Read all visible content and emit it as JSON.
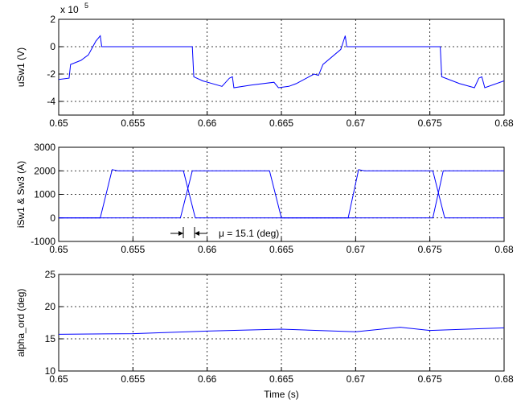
{
  "chart_data": [
    {
      "type": "line",
      "ylabel": "uSw1 (V)",
      "y_multiplier": "x 10",
      "y_exponent": "5",
      "xlim": [
        0.65,
        0.68
      ],
      "xticks": [
        0.65,
        0.655,
        0.66,
        0.665,
        0.67,
        0.675,
        0.68
      ],
      "ylim": [
        -5,
        2
      ],
      "yticks": [
        -4,
        -2,
        0,
        2
      ],
      "grid": true,
      "series": [
        {
          "color": "#0000ff",
          "x": [
            0.65,
            0.6507,
            0.6508,
            0.6515,
            0.652,
            0.6525,
            0.6528,
            0.6529,
            0.659,
            0.6591,
            0.6597,
            0.661,
            0.6615,
            0.6617,
            0.6618,
            0.663,
            0.6645,
            0.6648,
            0.6655,
            0.666,
            0.6672,
            0.6675,
            0.6678,
            0.669,
            0.6693,
            0.6694,
            0.6757,
            0.6758,
            0.677,
            0.678,
            0.6783,
            0.6785,
            0.6787,
            0.68
          ],
          "values": [
            -2.4,
            -2.3,
            -1.3,
            -1.0,
            -0.6,
            0.4,
            0.8,
            0,
            0,
            -2.2,
            -2.5,
            -2.9,
            -2.3,
            -2.2,
            -3.0,
            -2.8,
            -2.6,
            -3.0,
            -2.9,
            -2.7,
            -2.0,
            -2.1,
            -1.3,
            -0.2,
            0.8,
            0,
            0,
            -2.2,
            -2.7,
            -3.0,
            -2.3,
            -2.2,
            -3.0,
            -2.5
          ]
        }
      ]
    },
    {
      "type": "line",
      "ylabel": "iSw1 & Sw3 (A)",
      "annotation": "μ = 15.1 (deg)",
      "xlim": [
        0.65,
        0.68
      ],
      "xticks": [
        0.65,
        0.655,
        0.66,
        0.665,
        0.67,
        0.675,
        0.68
      ],
      "ylim": [
        -1000,
        3000
      ],
      "yticks": [
        -1000,
        0,
        1000,
        2000,
        3000
      ],
      "grid": true,
      "series": [
        {
          "color": "#0000ff",
          "x": [
            0.65,
            0.6528,
            0.6536,
            0.654,
            0.6584,
            0.6592,
            0.6695,
            0.6702,
            0.6706,
            0.6752,
            0.676,
            0.68
          ],
          "values": [
            0,
            0,
            2050,
            2000,
            2000,
            0,
            0,
            2050,
            2000,
            2000,
            0,
            0
          ]
        },
        {
          "color": "#0000ff",
          "x": [
            0.65,
            0.6582,
            0.659,
            0.6642,
            0.665,
            0.6752,
            0.6759,
            0.68
          ],
          "values": [
            0,
            0,
            2000,
            2000,
            0,
            0,
            2000,
            2000
          ]
        }
      ]
    },
    {
      "type": "line",
      "ylabel": "alpha_ord (deg)",
      "xlabel": "Time (s)",
      "xlim": [
        0.65,
        0.68
      ],
      "xticks": [
        0.65,
        0.655,
        0.66,
        0.665,
        0.67,
        0.675,
        0.68
      ],
      "ylim": [
        10,
        25
      ],
      "yticks": [
        10,
        15,
        20,
        25
      ],
      "grid": true,
      "series": [
        {
          "color": "#0000ff",
          "x": [
            0.65,
            0.655,
            0.66,
            0.665,
            0.67,
            0.673,
            0.675,
            0.68
          ],
          "values": [
            15.7,
            15.8,
            16.2,
            16.5,
            16.1,
            16.8,
            16.3,
            16.7
          ]
        }
      ]
    }
  ]
}
